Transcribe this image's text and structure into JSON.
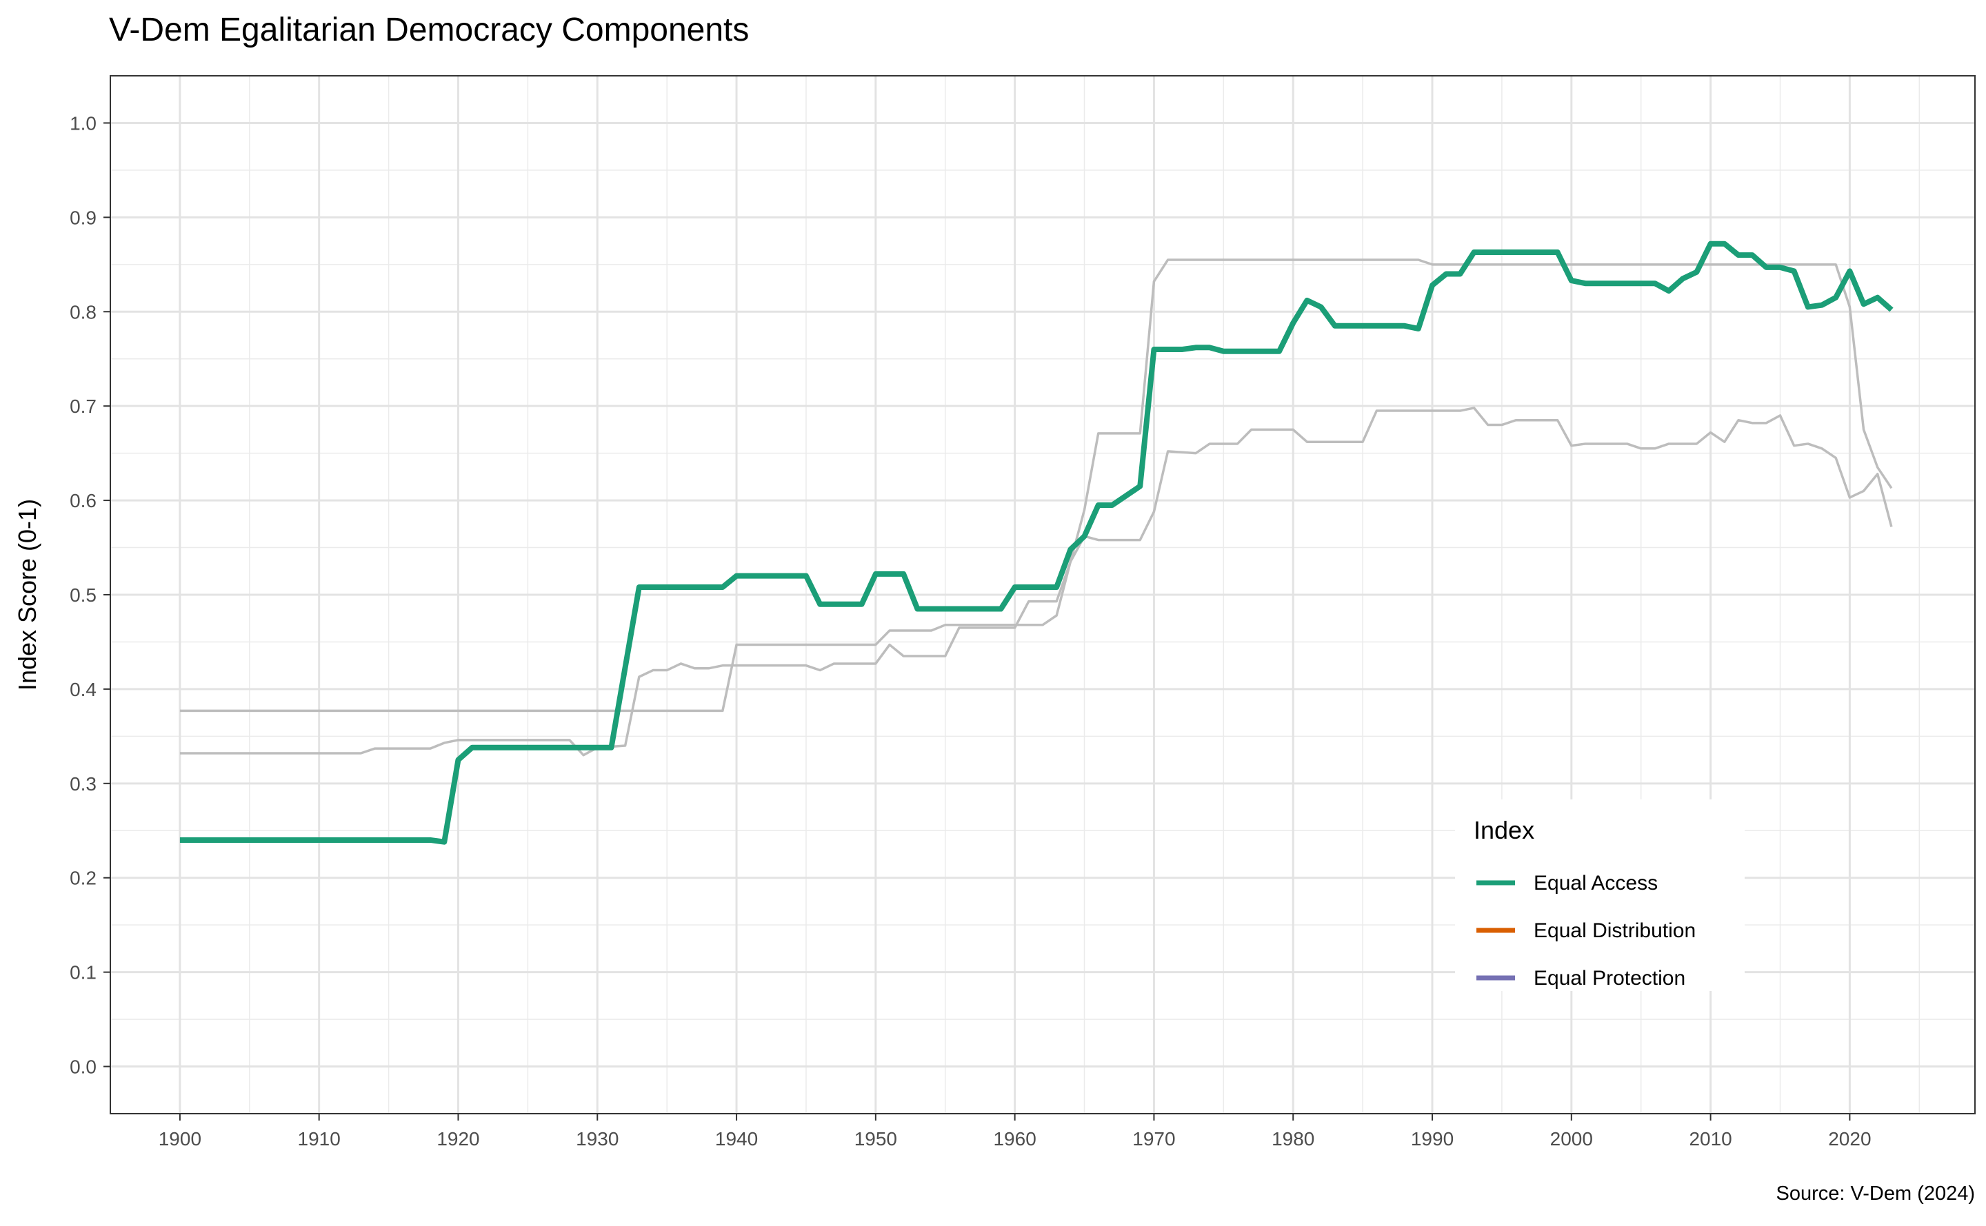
{
  "chart_data": {
    "type": "line",
    "title": "V-Dem Egalitarian Democracy Components",
    "xlabel": "",
    "ylabel": "Index Score (0-1)",
    "caption": "Source: V-Dem (2024)",
    "xlim": [
      1895,
      2029
    ],
    "ylim": [
      -0.05,
      1.05
    ],
    "x_ticks": [
      1900,
      1910,
      1920,
      1930,
      1940,
      1950,
      1960,
      1970,
      1980,
      1990,
      2000,
      2010,
      2020
    ],
    "y_ticks": [
      0.0,
      0.1,
      0.2,
      0.3,
      0.4,
      0.5,
      0.6,
      0.7,
      0.8,
      0.9,
      1.0
    ],
    "y_tick_labels": [
      "0.0",
      "0.1",
      "0.2",
      "0.3",
      "0.4",
      "0.5",
      "0.6",
      "0.7",
      "0.8",
      "0.9",
      "1.0"
    ],
    "grid": true,
    "legend": {
      "title": "Index",
      "position": "bottom-right",
      "entries": [
        {
          "label": "Equal Access",
          "color": "#1B9E77"
        },
        {
          "label": "Equal Distribution",
          "color": "#D95F02"
        },
        {
          "label": "Equal Protection",
          "color": "#7570B3"
        }
      ]
    },
    "series": [
      {
        "name": "Equal Access",
        "color": "#1B9E77",
        "highlighted": true,
        "points": [
          [
            1900,
            0.24
          ],
          [
            1918,
            0.24
          ],
          [
            1919,
            0.238
          ],
          [
            1920,
            0.325
          ],
          [
            1921,
            0.338
          ],
          [
            1931,
            0.338
          ],
          [
            1933,
            0.508
          ],
          [
            1939,
            0.508
          ],
          [
            1940,
            0.52
          ],
          [
            1945,
            0.52
          ],
          [
            1946,
            0.49
          ],
          [
            1949,
            0.49
          ],
          [
            1950,
            0.522
          ],
          [
            1952,
            0.522
          ],
          [
            1953,
            0.485
          ],
          [
            1959,
            0.485
          ],
          [
            1960,
            0.508
          ],
          [
            1963,
            0.508
          ],
          [
            1964,
            0.548
          ],
          [
            1965,
            0.562
          ],
          [
            1966,
            0.595
          ],
          [
            1967,
            0.595
          ],
          [
            1969,
            0.615
          ],
          [
            1970,
            0.76
          ],
          [
            1972,
            0.76
          ],
          [
            1973,
            0.762
          ],
          [
            1974,
            0.762
          ],
          [
            1975,
            0.758
          ],
          [
            1979,
            0.758
          ],
          [
            1980,
            0.788
          ],
          [
            1981,
            0.812
          ],
          [
            1982,
            0.805
          ],
          [
            1983,
            0.785
          ],
          [
            1988,
            0.785
          ],
          [
            1989,
            0.782
          ],
          [
            1990,
            0.828
          ],
          [
            1991,
            0.84
          ],
          [
            1992,
            0.84
          ],
          [
            1993,
            0.863
          ],
          [
            1999,
            0.863
          ],
          [
            2000,
            0.833
          ],
          [
            2001,
            0.83
          ],
          [
            2006,
            0.83
          ],
          [
            2007,
            0.822
          ],
          [
            2008,
            0.835
          ],
          [
            2009,
            0.842
          ],
          [
            2010,
            0.872
          ],
          [
            2011,
            0.872
          ],
          [
            2012,
            0.86
          ],
          [
            2013,
            0.86
          ],
          [
            2014,
            0.847
          ],
          [
            2015,
            0.847
          ],
          [
            2016,
            0.843
          ],
          [
            2017,
            0.805
          ],
          [
            2018,
            0.807
          ],
          [
            2019,
            0.815
          ],
          [
            2020,
            0.843
          ],
          [
            2021,
            0.808
          ],
          [
            2022,
            0.815
          ],
          [
            2023,
            0.802
          ]
        ]
      },
      {
        "name": "Equal Distribution",
        "color": "#bdbdbd",
        "highlighted": false,
        "points": [
          [
            1900,
            0.377
          ],
          [
            1939,
            0.377
          ],
          [
            1940,
            0.447
          ],
          [
            1950,
            0.447
          ],
          [
            1951,
            0.462
          ],
          [
            1954,
            0.462
          ],
          [
            1955,
            0.468
          ],
          [
            1962,
            0.468
          ],
          [
            1963,
            0.478
          ],
          [
            1964,
            0.535
          ],
          [
            1965,
            0.59
          ],
          [
            1966,
            0.671
          ],
          [
            1969,
            0.671
          ],
          [
            1970,
            0.832
          ],
          [
            1971,
            0.855
          ],
          [
            1989,
            0.855
          ],
          [
            1990,
            0.85
          ],
          [
            2019,
            0.85
          ],
          [
            2020,
            0.805
          ],
          [
            2021,
            0.675
          ],
          [
            2022,
            0.635
          ],
          [
            2023,
            0.613
          ]
        ]
      },
      {
        "name": "Equal Protection",
        "color": "#bdbdbd",
        "highlighted": false,
        "points": [
          [
            1900,
            0.332
          ],
          [
            1913,
            0.332
          ],
          [
            1914,
            0.337
          ],
          [
            1918,
            0.337
          ],
          [
            1919,
            0.343
          ],
          [
            1920,
            0.346
          ],
          [
            1928,
            0.346
          ],
          [
            1929,
            0.33
          ],
          [
            1930,
            0.338
          ],
          [
            1932,
            0.34
          ],
          [
            1933,
            0.413
          ],
          [
            1934,
            0.42
          ],
          [
            1935,
            0.42
          ],
          [
            1936,
            0.427
          ],
          [
            1937,
            0.422
          ],
          [
            1938,
            0.422
          ],
          [
            1939,
            0.425
          ],
          [
            1945,
            0.425
          ],
          [
            1946,
            0.42
          ],
          [
            1947,
            0.427
          ],
          [
            1950,
            0.427
          ],
          [
            1951,
            0.447
          ],
          [
            1952,
            0.435
          ],
          [
            1955,
            0.435
          ],
          [
            1956,
            0.465
          ],
          [
            1960,
            0.465
          ],
          [
            1961,
            0.493
          ],
          [
            1963,
            0.493
          ],
          [
            1964,
            0.535
          ],
          [
            1965,
            0.562
          ],
          [
            1966,
            0.558
          ],
          [
            1969,
            0.558
          ],
          [
            1970,
            0.588
          ],
          [
            1971,
            0.652
          ],
          [
            1973,
            0.65
          ],
          [
            1974,
            0.66
          ],
          [
            1976,
            0.66
          ],
          [
            1977,
            0.675
          ],
          [
            1980,
            0.675
          ],
          [
            1981,
            0.662
          ],
          [
            1985,
            0.662
          ],
          [
            1986,
            0.695
          ],
          [
            1992,
            0.695
          ],
          [
            1993,
            0.698
          ],
          [
            1994,
            0.68
          ],
          [
            1995,
            0.68
          ],
          [
            1996,
            0.685
          ],
          [
            1999,
            0.685
          ],
          [
            2000,
            0.658
          ],
          [
            2001,
            0.66
          ],
          [
            2004,
            0.66
          ],
          [
            2005,
            0.655
          ],
          [
            2006,
            0.655
          ],
          [
            2007,
            0.66
          ],
          [
            2009,
            0.66
          ],
          [
            2010,
            0.672
          ],
          [
            2011,
            0.662
          ],
          [
            2012,
            0.685
          ],
          [
            2013,
            0.682
          ],
          [
            2014,
            0.682
          ],
          [
            2015,
            0.69
          ],
          [
            2016,
            0.658
          ],
          [
            2017,
            0.66
          ],
          [
            2018,
            0.655
          ],
          [
            2019,
            0.645
          ],
          [
            2020,
            0.603
          ],
          [
            2021,
            0.61
          ],
          [
            2022,
            0.628
          ],
          [
            2023,
            0.572
          ]
        ]
      }
    ]
  }
}
